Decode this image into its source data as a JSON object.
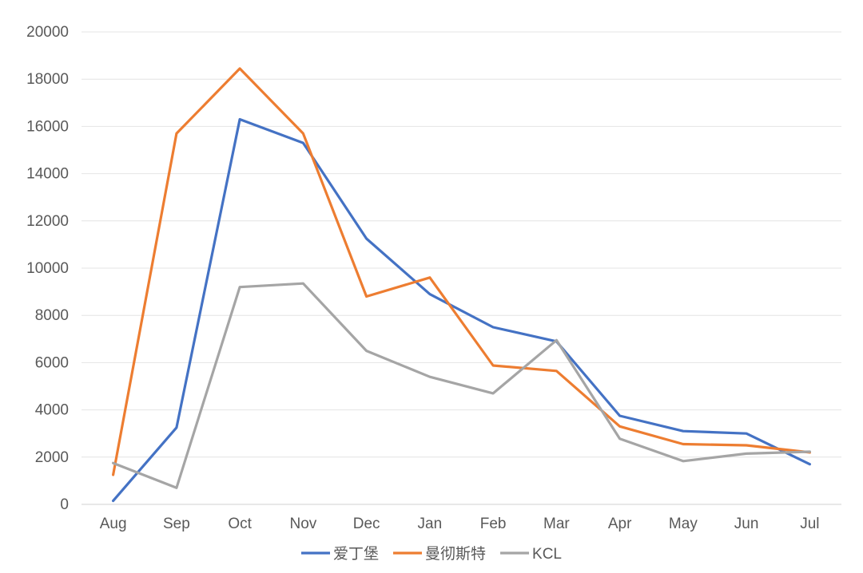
{
  "chart_data": {
    "type": "line",
    "title": "",
    "xlabel": "",
    "ylabel": "",
    "categories": [
      "Aug",
      "Sep",
      "Oct",
      "Nov",
      "Dec",
      "Jan",
      "Feb",
      "Mar",
      "Apr",
      "May",
      "Jun",
      "Jul"
    ],
    "ylim": [
      0,
      20000
    ],
    "yticks": [
      0,
      2000,
      4000,
      6000,
      8000,
      10000,
      12000,
      14000,
      16000,
      18000,
      20000
    ],
    "ytick_labels": [
      "0",
      "2000",
      "4000",
      "6000",
      "8000",
      "10000",
      "12000",
      "14000",
      "16000",
      "18000",
      "20000"
    ],
    "grid": true,
    "legend_position": "bottom",
    "series": [
      {
        "name": "爱丁堡",
        "color": "#4472C4",
        "values": [
          150,
          3250,
          16300,
          15300,
          11250,
          8900,
          7500,
          6900,
          3750,
          3100,
          3000,
          1700
        ]
      },
      {
        "name": "曼彻斯特",
        "color": "#ED7D31",
        "values": [
          1250,
          15700,
          18450,
          15700,
          8800,
          9600,
          5880,
          5650,
          3300,
          2550,
          2500,
          2200
        ]
      },
      {
        "name": "KCL",
        "color": "#A5A5A5",
        "values": [
          1750,
          700,
          9200,
          9350,
          6500,
          5400,
          4700,
          6950,
          2780,
          1830,
          2150,
          2230
        ]
      }
    ]
  }
}
